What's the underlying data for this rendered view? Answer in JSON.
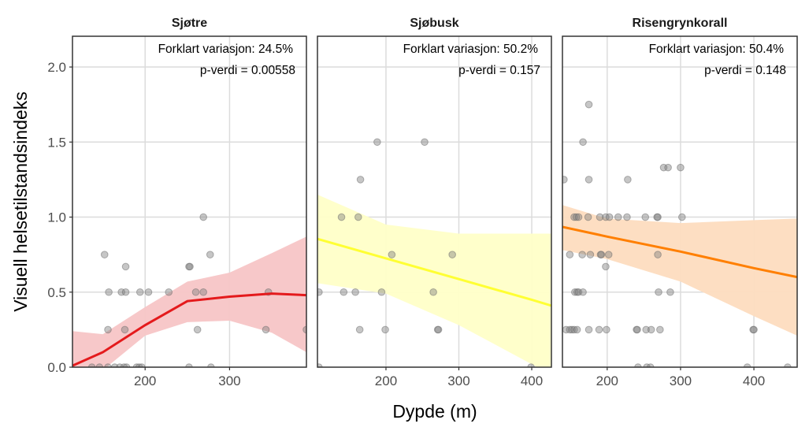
{
  "chart_data": {
    "type": "scatter",
    "ylabel": "Visuell helsetilstandsindeks",
    "xlabel": "Dypde (m)",
    "ylim": [
      0,
      2.205
    ],
    "yticks": [
      0.0,
      0.5,
      1.0,
      1.5,
      2.0
    ],
    "ytick_labels": [
      "0.0",
      "0.5",
      "1.0",
      "1.5",
      "2.0"
    ],
    "grid": true,
    "point_color": "#808080",
    "panels": [
      {
        "title": "Sjøtre",
        "annotation_line1": "Forklart variasjon: 24.5%",
        "annotation_line2": "p-verdi = 0.00558",
        "fit_color": "#e41a1c",
        "ribbon_color": "#f7c5c6",
        "xlim": [
          114,
          391
        ],
        "xticks": [
          200,
          300
        ],
        "xtick_labels": [
          "200",
          "300"
        ],
        "fit": {
          "x": [
            114,
            150,
            200,
            250,
            300,
            350,
            391
          ],
          "y": [
            0.01,
            0.1,
            0.28,
            0.44,
            0.47,
            0.49,
            0.48
          ],
          "lower": [
            -0.22,
            -0.02,
            0.21,
            0.3,
            0.31,
            0.23,
            0.1
          ],
          "upper": [
            0.24,
            0.22,
            0.4,
            0.57,
            0.63,
            0.76,
            0.87
          ]
        },
        "points": [
          [
            269,
            1.0
          ],
          [
            152,
            0.75
          ],
          [
            277,
            0.75
          ],
          [
            177,
            0.67
          ],
          [
            252,
            0.67
          ],
          [
            253,
            0.67
          ],
          [
            157,
            0.5
          ],
          [
            172,
            0.5
          ],
          [
            177,
            0.5
          ],
          [
            194,
            0.5
          ],
          [
            204,
            0.5
          ],
          [
            228,
            0.5
          ],
          [
            260,
            0.5
          ],
          [
            269,
            0.5
          ],
          [
            346,
            0.5
          ],
          [
            156,
            0.25
          ],
          [
            176,
            0.25
          ],
          [
            262,
            0.25
          ],
          [
            343,
            0.25
          ],
          [
            391,
            0.25
          ],
          [
            137,
            0
          ],
          [
            146,
            0
          ],
          [
            156,
            0
          ],
          [
            164,
            0
          ],
          [
            170,
            0
          ],
          [
            175,
            0
          ],
          [
            178,
            0
          ],
          [
            190,
            0
          ],
          [
            193,
            0
          ],
          [
            196,
            0
          ],
          [
            252,
            0
          ],
          [
            278,
            0
          ]
        ]
      },
      {
        "title": "Sjøbusk",
        "annotation_line1": "Forklart variasjon: 50.2%",
        "annotation_line2": "p-verdi = 0.157",
        "fit_color": "#ffff33",
        "ribbon_color": "#ffffc8",
        "xlim": [
          106,
          427
        ],
        "xticks": [
          200,
          300,
          400
        ],
        "xtick_labels": [
          "200",
          "300",
          "400"
        ],
        "fit": {
          "x": [
            106,
            200,
            300,
            400,
            427
          ],
          "y": [
            0.855,
            0.725,
            0.587,
            0.449,
            0.41
          ],
          "lower": [
            0.56,
            0.49,
            0.28,
            0.02,
            -0.05
          ],
          "upper": [
            1.15,
            0.95,
            0.89,
            0.89,
            0.89
          ]
        },
        "points": [
          [
            188,
            1.5
          ],
          [
            253,
            1.5
          ],
          [
            165,
            1.25
          ],
          [
            139,
            1.0
          ],
          [
            162,
            1.0
          ],
          [
            208,
            0.75
          ],
          [
            291,
            0.75
          ],
          [
            108,
            0.5
          ],
          [
            142,
            0.5
          ],
          [
            158,
            0.5
          ],
          [
            194,
            0.5
          ],
          [
            265,
            0.5
          ],
          [
            164,
            0.25
          ],
          [
            199,
            0.25
          ],
          [
            271,
            0.25
          ],
          [
            272,
            0.25
          ],
          [
            108,
            0
          ],
          [
            399,
            0
          ]
        ]
      },
      {
        "title": "Risengrynkorall",
        "annotation_line1": "Forklart variasjon: 50.4%",
        "annotation_line2": "p-verdi = 0.148",
        "fit_color": "#ff7f00",
        "ribbon_color": "#fddcbf",
        "xlim": [
          139,
          459
        ],
        "xticks": [
          200,
          300,
          400
        ],
        "xtick_labels": [
          "200",
          "300",
          "400"
        ],
        "fit": {
          "x": [
            139,
            200,
            300,
            400,
            459
          ],
          "y": [
            0.935,
            0.87,
            0.77,
            0.66,
            0.6
          ],
          "lower": [
            0.78,
            0.72,
            0.57,
            0.34,
            0.21
          ],
          "upper": [
            1.08,
            0.99,
            0.96,
            0.98,
            0.99
          ]
        },
        "points": [
          [
            175,
            1.75
          ],
          [
            167,
            1.5
          ],
          [
            277,
            1.33
          ],
          [
            283,
            1.33
          ],
          [
            300,
            1.33
          ],
          [
            141,
            1.25
          ],
          [
            175,
            1.25
          ],
          [
            228,
            1.25
          ],
          [
            155,
            1.0
          ],
          [
            158,
            1.0
          ],
          [
            161,
            1.0
          ],
          [
            174,
            1.0
          ],
          [
            190,
            1.0
          ],
          [
            198,
            1.0
          ],
          [
            203,
            1.0
          ],
          [
            215,
            1.0
          ],
          [
            227,
            1.0
          ],
          [
            252,
            1.0
          ],
          [
            268,
            1.0
          ],
          [
            269,
            1.0
          ],
          [
            302,
            1.0
          ],
          [
            149,
            0.75
          ],
          [
            166,
            0.75
          ],
          [
            177,
            0.75
          ],
          [
            191,
            0.75
          ],
          [
            192,
            0.75
          ],
          [
            202,
            0.75
          ],
          [
            269,
            0.75
          ],
          [
            198,
            0.67
          ],
          [
            156,
            0.5
          ],
          [
            159,
            0.5
          ],
          [
            161,
            0.5
          ],
          [
            167,
            0.5
          ],
          [
            270,
            0.5
          ],
          [
            286,
            0.5
          ],
          [
            144,
            0.25
          ],
          [
            149,
            0.25
          ],
          [
            152,
            0.25
          ],
          [
            155,
            0.25
          ],
          [
            159,
            0.25
          ],
          [
            175,
            0.25
          ],
          [
            189,
            0.25
          ],
          [
            199,
            0.25
          ],
          [
            240,
            0.25
          ],
          [
            241,
            0.25
          ],
          [
            253,
            0.25
          ],
          [
            260,
            0.25
          ],
          [
            272,
            0.25
          ],
          [
            399,
            0.25
          ],
          [
            400,
            0.25
          ],
          [
            242,
            0
          ],
          [
            254,
            0
          ],
          [
            259,
            0
          ],
          [
            391,
            0
          ],
          [
            446,
            0
          ]
        ]
      }
    ]
  }
}
